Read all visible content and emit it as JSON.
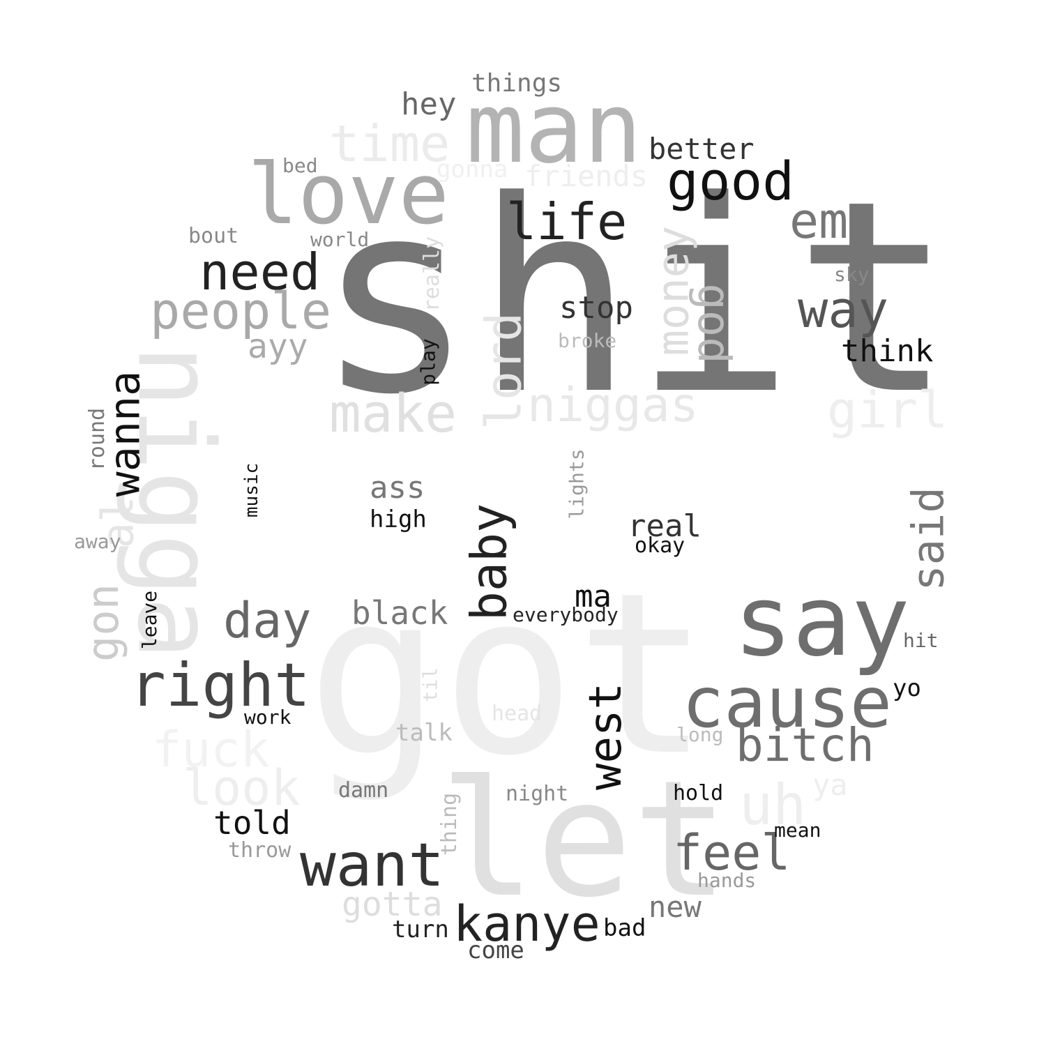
{
  "words": [
    {
      "text": "shit",
      "color": "#757575"
    },
    {
      "text": "got",
      "color": "#eeeeee"
    },
    {
      "text": "let",
      "color": "#e0e0e0"
    },
    {
      "text": "man",
      "color": "#b3b3b3"
    },
    {
      "text": "nigga",
      "color": "#e5e5e5"
    },
    {
      "text": "love",
      "color": "#a9a9a9"
    },
    {
      "text": "say",
      "color": "#6e6e6e"
    },
    {
      "text": "cause",
      "color": "#6e6e6e"
    },
    {
      "text": "want",
      "color": "#333333"
    },
    {
      "text": "right",
      "color": "#444444"
    },
    {
      "text": "time",
      "color": "#ebebeb"
    },
    {
      "text": "good",
      "color": "#111111"
    },
    {
      "text": "life",
      "color": "#222222"
    },
    {
      "text": "em",
      "color": "#777777"
    },
    {
      "text": "need",
      "color": "#222222"
    },
    {
      "text": "people",
      "color": "#a9a9a9"
    },
    {
      "text": "way",
      "color": "#555555"
    },
    {
      "text": "make",
      "color": "#e0e0e0"
    },
    {
      "text": "niggas",
      "color": "#e8e8e8"
    },
    {
      "text": "girl",
      "color": "#eeeeee"
    },
    {
      "text": "lord",
      "color": "#e5e5e5"
    },
    {
      "text": "money",
      "color": "#dddddd"
    },
    {
      "text": "god",
      "color": "#bbbbbb"
    },
    {
      "text": "wanna",
      "color": "#111111"
    },
    {
      "text": "baby",
      "color": "#222222"
    },
    {
      "text": "said",
      "color": "#777777"
    },
    {
      "text": "west",
      "color": "#111111"
    },
    {
      "text": "bitch",
      "color": "#6e6e6e"
    },
    {
      "text": "kanye",
      "color": "#222222"
    },
    {
      "text": "feel",
      "color": "#666666"
    },
    {
      "text": "day",
      "color": "#666666"
    },
    {
      "text": "fuck",
      "color": "#f2f2f2"
    },
    {
      "text": "look",
      "color": "#eeeeee"
    },
    {
      "text": "uh",
      "color": "#eeeeee"
    },
    {
      "text": "gon",
      "color": "#cccccc"
    },
    {
      "text": "al",
      "color": "#e5e5e5"
    },
    {
      "text": "stop",
      "color": "#333333"
    },
    {
      "text": "think",
      "color": "#111111"
    },
    {
      "text": "better",
      "color": "#333333"
    },
    {
      "text": "hey",
      "color": "#666666"
    },
    {
      "text": "things",
      "color": "#777777"
    },
    {
      "text": "friends",
      "color": "#eeeeee"
    },
    {
      "text": "gonna",
      "color": "#f0f0f0"
    },
    {
      "text": "ayy",
      "color": "#aaaaaa"
    },
    {
      "text": "black",
      "color": "#777777"
    },
    {
      "text": "ass",
      "color": "#777777"
    },
    {
      "text": "high",
      "color": "#111111"
    },
    {
      "text": "real",
      "color": "#333333"
    },
    {
      "text": "okay",
      "color": "#111111"
    },
    {
      "text": "ma",
      "color": "#111111"
    },
    {
      "text": "everybody",
      "color": "#222222"
    },
    {
      "text": "told",
      "color": "#111111"
    },
    {
      "text": "gotta",
      "color": "#dddddd"
    },
    {
      "text": "new",
      "color": "#777777"
    },
    {
      "text": "turn",
      "color": "#222222"
    },
    {
      "text": "come",
      "color": "#444444"
    },
    {
      "text": "bad",
      "color": "#111111"
    },
    {
      "text": "hold",
      "color": "#111111"
    },
    {
      "text": "mean",
      "color": "#111111"
    },
    {
      "text": "hands",
      "color": "#999999"
    },
    {
      "text": "ya",
      "color": "#eeeeee"
    },
    {
      "text": "yo",
      "color": "#111111"
    },
    {
      "text": "hit",
      "color": "#666666"
    },
    {
      "text": "long",
      "color": "#bbbbbb"
    },
    {
      "text": "head",
      "color": "#e5e5e5"
    },
    {
      "text": "night",
      "color": "#888888"
    },
    {
      "text": "talk",
      "color": "#bbbbbb"
    },
    {
      "text": "til",
      "color": "#dddddd"
    },
    {
      "text": "thing",
      "color": "#bbbbbb"
    },
    {
      "text": "damn",
      "color": "#777777"
    },
    {
      "text": "throw",
      "color": "#999999"
    },
    {
      "text": "work",
      "color": "#111111"
    },
    {
      "text": "leave",
      "color": "#111111"
    },
    {
      "text": "away",
      "color": "#999999"
    },
    {
      "text": "music",
      "color": "#111111"
    },
    {
      "text": "round",
      "color": "#777777"
    },
    {
      "text": "bed",
      "color": "#888888"
    },
    {
      "text": "bout",
      "color": "#888888"
    },
    {
      "text": "world",
      "color": "#888888"
    },
    {
      "text": "really",
      "color": "#dddddd"
    },
    {
      "text": "play",
      "color": "#111111"
    },
    {
      "text": "broke",
      "color": "#bbbbbb"
    },
    {
      "text": "lights",
      "color": "#999999"
    },
    {
      "text": "sky",
      "color": "#888888"
    }
  ]
}
